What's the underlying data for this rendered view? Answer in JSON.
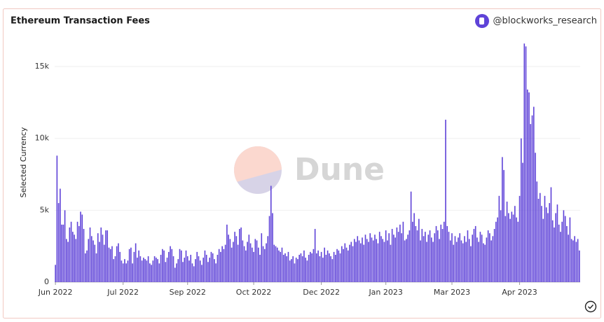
{
  "chart_data": {
    "type": "bar",
    "title": "Ethereum Transaction Fees",
    "brand": "@blockworks_research",
    "watermark": "Dune",
    "y_label": "Selected Currency",
    "color": "#5f43d8",
    "grid": true,
    "ylim": [
      0,
      17000
    ],
    "yticks": [
      0,
      {
        "value": 5000,
        "label": "5k"
      },
      {
        "value": 10000,
        "label": "10k"
      },
      {
        "value": 15000,
        "label": "15k"
      }
    ],
    "xlim": [
      -0.5,
      333.5
    ],
    "xticks": [
      {
        "value": 0,
        "label": "Jun 2022"
      },
      {
        "value": 43,
        "label": "Jul 2022"
      },
      {
        "value": 84,
        "label": "Sep 2022"
      },
      {
        "value": 126,
        "label": "Oct 2022"
      },
      {
        "value": 169,
        "label": "Dec 2022"
      },
      {
        "value": 210,
        "label": "Jan 2023"
      },
      {
        "value": 252,
        "label": "Mar 2023"
      },
      {
        "value": 295,
        "label": "Apr 2023"
      }
    ],
    "values": [
      1200,
      8800,
      5500,
      6500,
      4000,
      4000,
      5000,
      3000,
      2800,
      3800,
      4200,
      3500,
      3300,
      3000,
      4200,
      3900,
      4900,
      4700,
      3700,
      2000,
      2200,
      3000,
      3800,
      3200,
      2900,
      2600,
      2000,
      3400,
      2800,
      3800,
      3300,
      2600,
      3600,
      3600,
      2400,
      2300,
      2500,
      1600,
      1800,
      2500,
      2700,
      2100,
      1500,
      1300,
      1600,
      1300,
      1500,
      2300,
      2400,
      1300,
      2100,
      2700,
      1700,
      2200,
      1800,
      1500,
      1700,
      1600,
      1500,
      1800,
      1300,
      1200,
      1500,
      1800,
      1700,
      1600,
      1300,
      1900,
      2300,
      2200,
      1400,
      1700,
      2100,
      2500,
      2300,
      1800,
      1000,
      1300,
      1600,
      2300,
      2200,
      1400,
      1700,
      2200,
      1800,
      1500,
      1900,
      1300,
      1100,
      1600,
      2100,
      1800,
      1500,
      1200,
      1700,
      2200,
      1900,
      1400,
      1700,
      2100,
      2000,
      1600,
      1300,
      1900,
      2300,
      2100,
      2500,
      2300,
      2600,
      4000,
      3300,
      3000,
      2400,
      2800,
      3500,
      3200,
      2600,
      3700,
      3800,
      2900,
      2500,
      2200,
      2800,
      3300,
      2700,
      2400,
      2100,
      3000,
      2900,
      2400,
      1900,
      3400,
      2500,
      2300,
      2700,
      3200,
      4600,
      6700,
      4800,
      2600,
      2500,
      2400,
      2200,
      2100,
      2400,
      1900,
      2000,
      1800,
      2100,
      1500,
      1600,
      1800,
      1300,
      1700,
      1600,
      1900,
      2000,
      1800,
      2200,
      1700,
      1500,
      1900,
      2100,
      2000,
      2300,
      3700,
      2000,
      2200,
      1800,
      2100,
      1700,
      2400,
      1900,
      2200,
      2000,
      1800,
      1600,
      2100,
      1900,
      2300,
      2200,
      2000,
      2500,
      2300,
      2700,
      2400,
      2200,
      2600,
      2800,
      2500,
      3000,
      2800,
      3200,
      2900,
      2700,
      3100,
      2600,
      3300,
      3000,
      2800,
      3400,
      3100,
      2900,
      3300,
      3000,
      2700,
      3500,
      3200,
      3000,
      2800,
      3600,
      2900,
      3400,
      2600,
      3700,
      3300,
      3100,
      3800,
      3500,
      4000,
      3400,
      4200,
      2900,
      3000,
      3300,
      3600,
      6300,
      4200,
      4800,
      3900,
      3600,
      4400,
      2900,
      3700,
      3200,
      3500,
      2800,
      3300,
      3600,
      3100,
      2800,
      3400,
      3900,
      3600,
      3000,
      4000,
      3700,
      4200,
      11300,
      3900,
      3500,
      2900,
      3400,
      2600,
      3200,
      2800,
      3100,
      3400,
      2900,
      2700,
      3200,
      2800,
      3600,
      3000,
      2500,
      3300,
      3700,
      3900,
      3100,
      2800,
      3500,
      3300,
      2700,
      2600,
      3100,
      3600,
      3400,
      2900,
      3200,
      3700,
      4200,
      4500,
      6000,
      5000,
      8700,
      7800,
      4600,
      5600,
      4800,
      4400,
      4900,
      4700,
      5300,
      4500,
      4200,
      6000,
      10000,
      8300,
      16600,
      16400,
      13400,
      13200,
      11000,
      11600,
      12200,
      9000,
      7000,
      5800,
      6200,
      5300,
      4400,
      6000,
      5200,
      4800,
      5500,
      6600,
      4300,
      3800,
      4800,
      5400,
      4000,
      3500,
      4200,
      5000,
      4600,
      3900,
      3300,
      4500,
      3000,
      2900,
      3200,
      2800,
      3000,
      2200
    ]
  }
}
